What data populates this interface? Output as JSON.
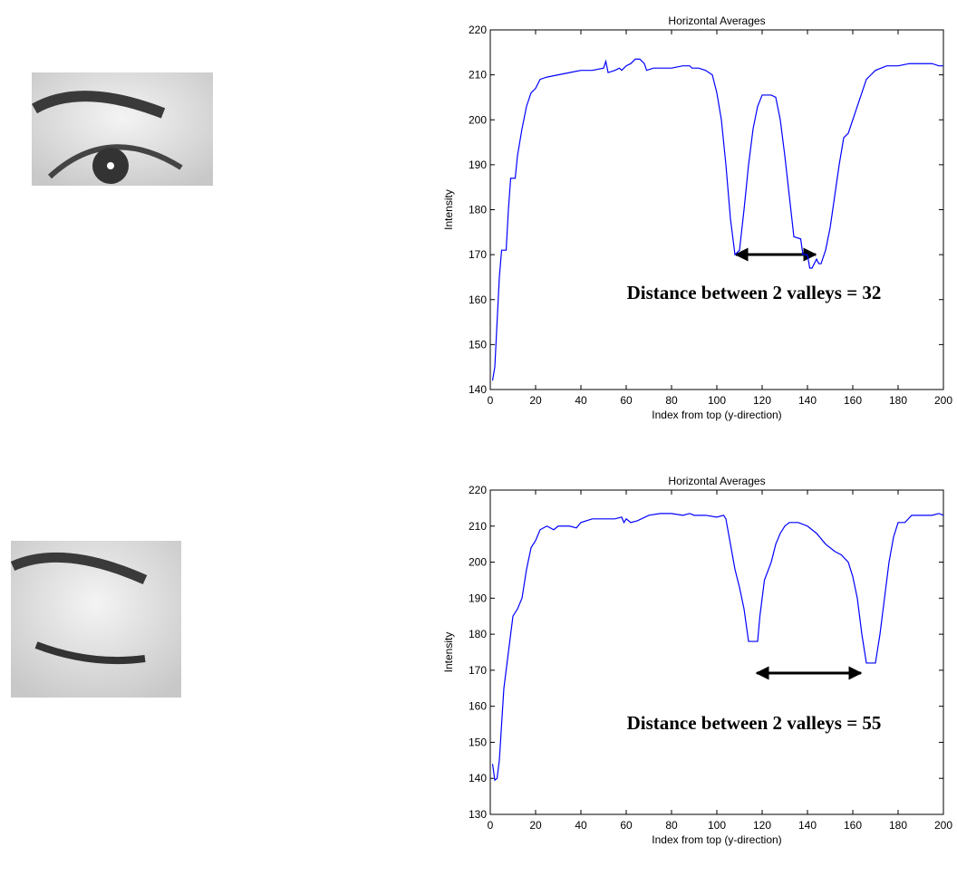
{
  "chart_data": [
    {
      "type": "line",
      "title": "Horizontal Averages",
      "xlabel": "Index from top (y-direction)",
      "ylabel": "Intensity",
      "annotation": "Distance between 2 valleys = 32",
      "color": "#0000ff",
      "xlim": [
        0,
        200
      ],
      "xticks": [
        0,
        20,
        40,
        60,
        80,
        100,
        120,
        140,
        160,
        180,
        200
      ],
      "ylim": [
        140,
        220
      ],
      "yticks": [
        140,
        150,
        160,
        170,
        180,
        190,
        200,
        210,
        220
      ],
      "x": [
        1,
        2,
        3,
        4,
        5,
        7,
        8,
        9,
        11,
        12,
        14,
        16,
        18,
        20,
        22,
        25,
        30,
        35,
        40,
        45,
        50,
        51,
        52,
        55,
        57,
        58,
        60,
        62,
        64,
        66,
        68,
        69,
        72,
        80,
        85,
        88,
        89,
        92,
        95,
        98,
        100,
        102,
        104,
        106,
        108,
        110,
        112,
        114,
        116,
        118,
        120,
        124,
        126,
        128,
        130,
        132,
        134,
        137,
        138,
        140,
        141,
        142,
        144,
        145,
        146,
        148,
        150,
        152,
        154,
        156,
        158,
        160,
        162,
        164,
        166,
        168,
        170,
        175,
        180,
        185,
        190,
        195,
        198,
        200
      ],
      "values": [
        142,
        145,
        155,
        165,
        171,
        171,
        180,
        187,
        187,
        192,
        198,
        203,
        206,
        207,
        209,
        209.5,
        210,
        210.5,
        211,
        211,
        211.5,
        213,
        210.5,
        211,
        211.5,
        211,
        212,
        212.5,
        213.5,
        213.5,
        212.5,
        211,
        211.5,
        211.5,
        212,
        212,
        211.5,
        211.5,
        211,
        210,
        206,
        200,
        190,
        178,
        170,
        171,
        180,
        190,
        198,
        203,
        205.5,
        205.5,
        205,
        200,
        192,
        183,
        174,
        173.5,
        170,
        170,
        167,
        167,
        169,
        168,
        168,
        171,
        176,
        183,
        190,
        196,
        197,
        200,
        203,
        206,
        209,
        210,
        211,
        212,
        212,
        212.5,
        212.5,
        212.5,
        212,
        212
      ]
    },
    {
      "type": "line",
      "title": "Horizontal Averages",
      "xlabel": "Index from top (y-direction)",
      "ylabel": "Intensity",
      "annotation": "Distance between 2 valleys = 55",
      "color": "#0000ff",
      "xlim": [
        0,
        200
      ],
      "xticks": [
        0,
        20,
        40,
        60,
        80,
        100,
        120,
        140,
        160,
        180,
        200
      ],
      "ylim": [
        130,
        220
      ],
      "yticks": [
        130,
        140,
        150,
        160,
        170,
        180,
        190,
        200,
        210,
        220
      ],
      "x": [
        1,
        2,
        3,
        4,
        5,
        6,
        8,
        10,
        12,
        14,
        16,
        18,
        20,
        22,
        25,
        28,
        30,
        35,
        38,
        40,
        45,
        50,
        55,
        58,
        59,
        60,
        62,
        65,
        70,
        75,
        80,
        85,
        88,
        90,
        95,
        100,
        103,
        104,
        106,
        108,
        110,
        112,
        114,
        116,
        118,
        119,
        121,
        124,
        126,
        128,
        130,
        132,
        136,
        140,
        144,
        148,
        152,
        155,
        158,
        160,
        162,
        164,
        166,
        170,
        172,
        174,
        176,
        178,
        180,
        183,
        186,
        190,
        195,
        198,
        200
      ],
      "values": [
        144,
        139.5,
        140,
        145,
        155,
        165,
        175,
        185,
        187,
        190,
        198,
        204,
        206,
        209,
        210,
        209,
        210,
        210,
        209.5,
        211,
        212,
        212,
        212,
        212.5,
        211,
        212,
        211,
        211.5,
        213,
        213.5,
        213.5,
        213,
        213.5,
        213,
        213,
        212.5,
        213,
        212,
        205,
        198,
        193,
        187,
        178,
        178,
        178,
        185,
        195,
        200,
        205,
        208,
        210,
        211,
        211,
        210,
        208,
        205,
        203,
        202,
        200,
        196,
        190,
        180,
        172,
        172,
        180,
        190,
        200,
        207,
        211,
        211,
        213,
        213,
        213,
        213.5,
        213
      ]
    }
  ]
}
